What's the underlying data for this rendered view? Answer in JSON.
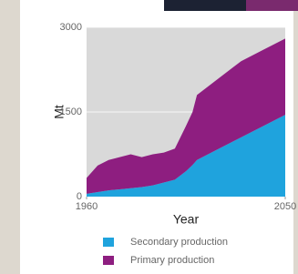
{
  "chart_data": {
    "type": "stacked-area",
    "x_label": "Year",
    "y_label": "Mt",
    "x": [
      1960,
      1965,
      1970,
      1975,
      1980,
      1985,
      1990,
      1995,
      2000,
      2005,
      2008,
      2010,
      2020,
      2030,
      2040,
      2050
    ],
    "series": [
      {
        "name": "Secondary production",
        "color": "#1fa3dd",
        "values": [
          50,
          80,
          110,
          130,
          150,
          170,
          200,
          250,
          300,
          450,
          560,
          650,
          850,
          1050,
          1250,
          1450
        ]
      },
      {
        "name": "Primary production",
        "color": "#8e1e80",
        "values": [
          280,
          470,
          540,
          570,
          600,
          530,
          550,
          530,
          550,
          800,
          940,
          1150,
          1250,
          1350,
          1350,
          1350
        ]
      }
    ],
    "xlim": [
      1960,
      2050
    ],
    "xticks": [
      1960,
      2050
    ],
    "ylim": [
      0,
      3000
    ],
    "yticks": [
      0,
      1500,
      3000
    ],
    "grid": true
  }
}
